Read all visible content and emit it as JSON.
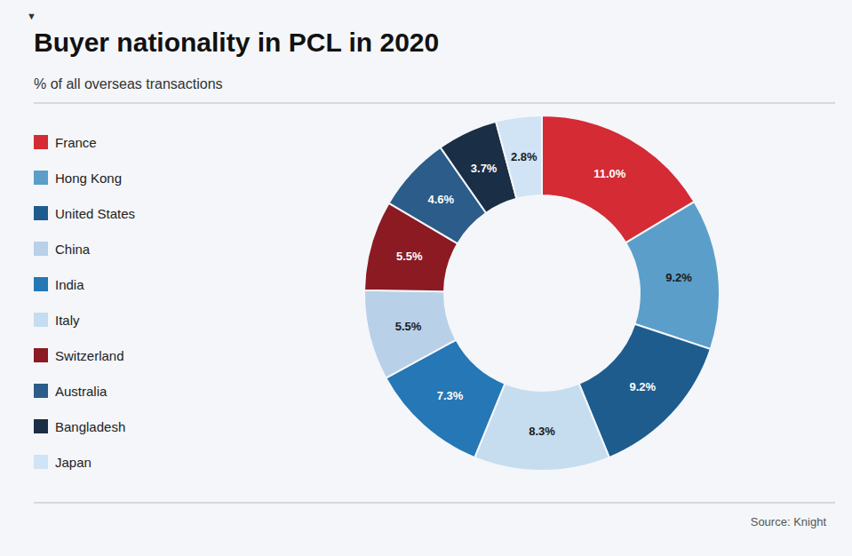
{
  "chart_data": {
    "type": "pie",
    "donut": true,
    "title": "Buyer nationality in PCL in 2020",
    "subtitle": "% of all overseas transactions",
    "source": "Source: Knight",
    "annotations": [
      "▼"
    ],
    "categories": [
      "France",
      "Hong Kong",
      "United States",
      "Italy",
      "India",
      "China",
      "Switzerland",
      "Australia",
      "Bangladesh",
      "Japan"
    ],
    "values": [
      11.0,
      9.2,
      9.2,
      8.3,
      7.3,
      5.5,
      5.5,
      4.6,
      3.7,
      2.8
    ],
    "value_labels": [
      "11.0%",
      "9.2%",
      "9.2%",
      "8.3%",
      "7.3%",
      "5.5%",
      "5.5%",
      "4.6%",
      "3.7%",
      "2.8%"
    ],
    "colors": [
      "#d42b35",
      "#5b9ec9",
      "#1e5c8e",
      "#c5ddef",
      "#2577b5",
      "#b8d0e8",
      "#8c1a22",
      "#2b5c8a",
      "#1a2e45",
      "#d0e4f5"
    ],
    "legend_entries": [
      "France",
      "Hong Kong",
      "United States",
      "China",
      "India",
      "Italy",
      "Switzerland",
      "Australia",
      "Bangladesh",
      "Japan"
    ],
    "data_labels": true
  }
}
